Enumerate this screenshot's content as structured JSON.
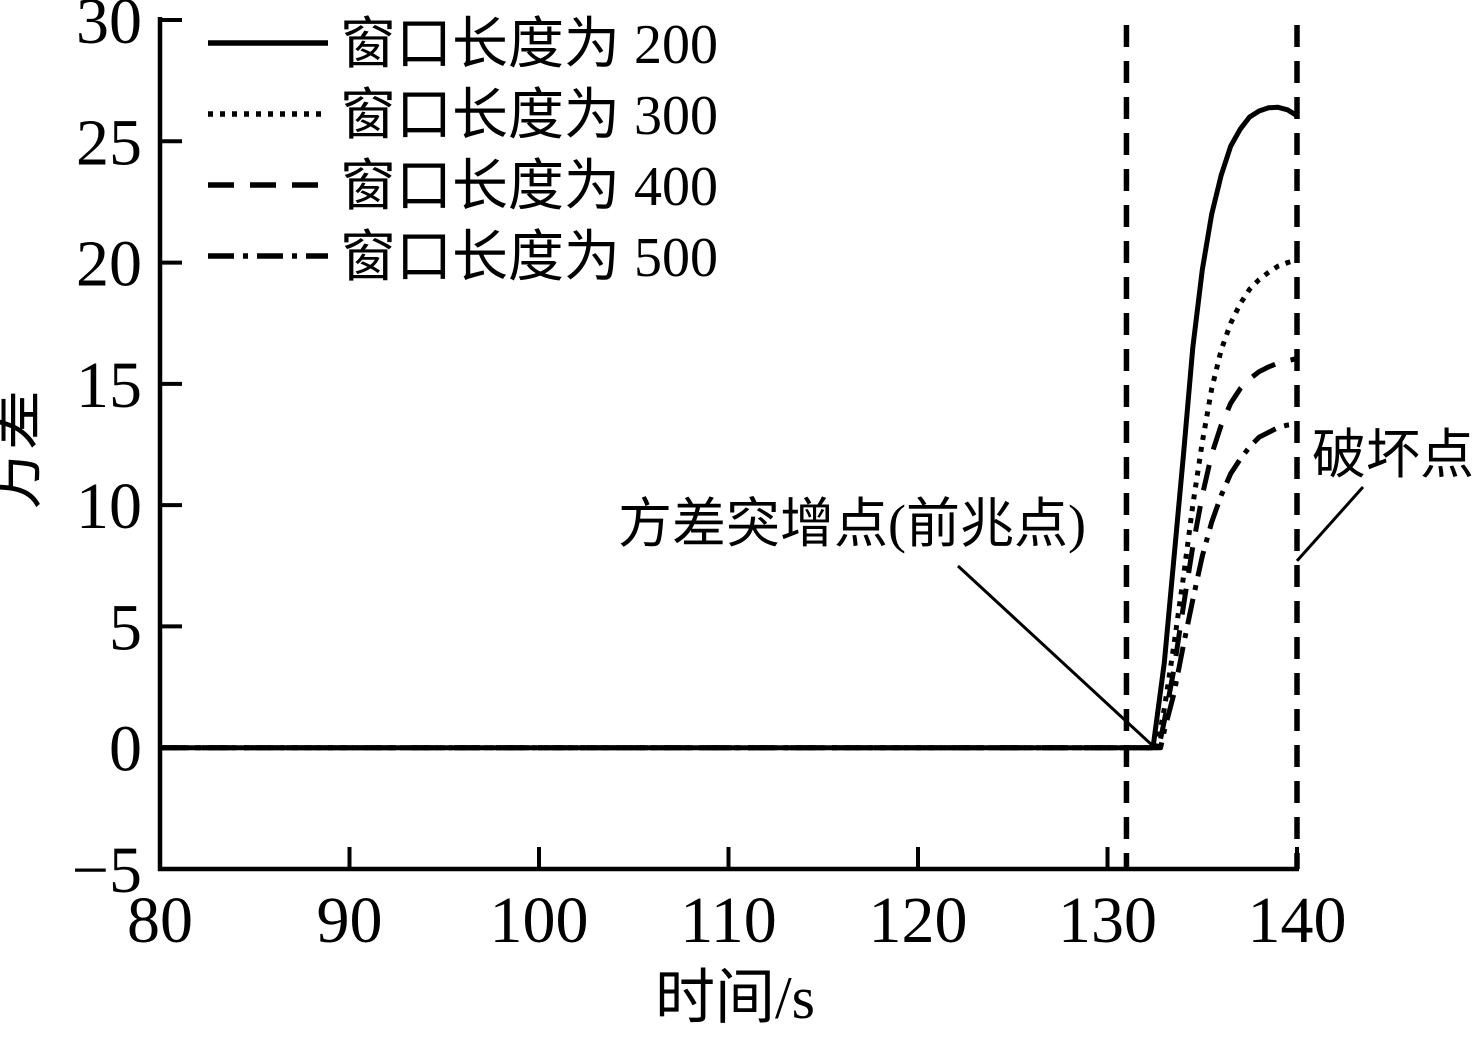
{
  "page": {
    "background": "#ffffff",
    "foreground": "#000000"
  },
  "chart_data": {
    "type": "line",
    "title": "",
    "xlabel": "时间/s",
    "ylabel": "方差",
    "xlim": [
      80,
      140
    ],
    "ylim": [
      -5,
      30
    ],
    "grid": false,
    "legend_position": "upper-left-inside",
    "line_color": "#000000",
    "x_ticks": [
      80,
      90,
      100,
      110,
      120,
      130,
      140
    ],
    "x_tick_labels": [
      "80",
      "90",
      "100",
      "110",
      "120",
      "130",
      "140"
    ],
    "y_ticks": [
      -5,
      0,
      5,
      10,
      15,
      20,
      25,
      30
    ],
    "y_tick_labels": [
      "−5",
      "0",
      "5",
      "10",
      "15",
      "20",
      "25",
      "30"
    ],
    "series": [
      {
        "name": "窗口长度为 200",
        "style": "solid",
        "points": [
          [
            80,
            0
          ],
          [
            90,
            0
          ],
          [
            100,
            0
          ],
          [
            110,
            0
          ],
          [
            120,
            0
          ],
          [
            130,
            0
          ],
          [
            132.4,
            0
          ],
          [
            133,
            3.5
          ],
          [
            133.4,
            6.9
          ],
          [
            134,
            12
          ],
          [
            134.5,
            16.5
          ],
          [
            135,
            19.7
          ],
          [
            135.5,
            22
          ],
          [
            136,
            23.6
          ],
          [
            136.5,
            24.8
          ],
          [
            137,
            25.5
          ],
          [
            137.5,
            26
          ],
          [
            138,
            26.25
          ],
          [
            138.5,
            26.38
          ],
          [
            139,
            26.4
          ],
          [
            139.5,
            26.3
          ],
          [
            140,
            26.05
          ]
        ]
      },
      {
        "name": "窗口长度为 300",
        "style": "dotted",
        "points": [
          [
            80,
            0
          ],
          [
            90,
            0
          ],
          [
            100,
            0
          ],
          [
            110,
            0
          ],
          [
            120,
            0
          ],
          [
            130,
            0
          ],
          [
            132.6,
            0
          ],
          [
            133,
            1.6
          ],
          [
            133.5,
            4.2
          ],
          [
            134,
            7
          ],
          [
            134.5,
            10
          ],
          [
            135,
            12.6
          ],
          [
            135.5,
            14.8
          ],
          [
            136,
            16.4
          ],
          [
            136.5,
            17.5
          ],
          [
            137,
            18.3
          ],
          [
            137.5,
            18.9
          ],
          [
            138,
            19.3
          ],
          [
            138.5,
            19.6
          ],
          [
            139,
            19.85
          ],
          [
            139.5,
            20
          ],
          [
            140,
            20.1
          ]
        ]
      },
      {
        "name": "窗口长度为 400",
        "style": "dashed",
        "points": [
          [
            80,
            0
          ],
          [
            90,
            0
          ],
          [
            100,
            0
          ],
          [
            110,
            0
          ],
          [
            120,
            0
          ],
          [
            130,
            0
          ],
          [
            132.7,
            0
          ],
          [
            133,
            1.1
          ],
          [
            133.5,
            3.2
          ],
          [
            134,
            5.8
          ],
          [
            134.5,
            8.3
          ],
          [
            135,
            10.4
          ],
          [
            135.5,
            12.1
          ],
          [
            136,
            13.3
          ],
          [
            136.5,
            14.2
          ],
          [
            137,
            14.8
          ],
          [
            137.5,
            15.2
          ],
          [
            138,
            15.5
          ],
          [
            138.5,
            15.7
          ],
          [
            139,
            15.85
          ],
          [
            139.5,
            15.95
          ],
          [
            140,
            16.05
          ]
        ]
      },
      {
        "name": "窗口长度为 500",
        "style": "dashdot",
        "points": [
          [
            80,
            0
          ],
          [
            90,
            0
          ],
          [
            100,
            0
          ],
          [
            110,
            0
          ],
          [
            120,
            0
          ],
          [
            130,
            0
          ],
          [
            132.8,
            0
          ],
          [
            133,
            0.7
          ],
          [
            133.5,
            2.2
          ],
          [
            134,
            4.2
          ],
          [
            134.5,
            6.1
          ],
          [
            135,
            7.9
          ],
          [
            135.5,
            9.3
          ],
          [
            136,
            10.4
          ],
          [
            136.5,
            11.3
          ],
          [
            137,
            11.9
          ],
          [
            137.5,
            12.4
          ],
          [
            138,
            12.8
          ],
          [
            138.5,
            13
          ],
          [
            139,
            13.2
          ],
          [
            139.5,
            13.3
          ],
          [
            140,
            13.35
          ]
        ]
      }
    ],
    "vlines": [
      {
        "x": 131,
        "style": "dashed",
        "meaning": "precursor-time"
      },
      {
        "x": 140,
        "style": "dashed",
        "meaning": "failure-time"
      }
    ],
    "annotations": [
      {
        "text": "方差突增点(前兆点)",
        "target_x": 132.5,
        "target_y": 0
      },
      {
        "text": "破坏点",
        "target_x": 140,
        "target_y": 7.7
      }
    ]
  }
}
